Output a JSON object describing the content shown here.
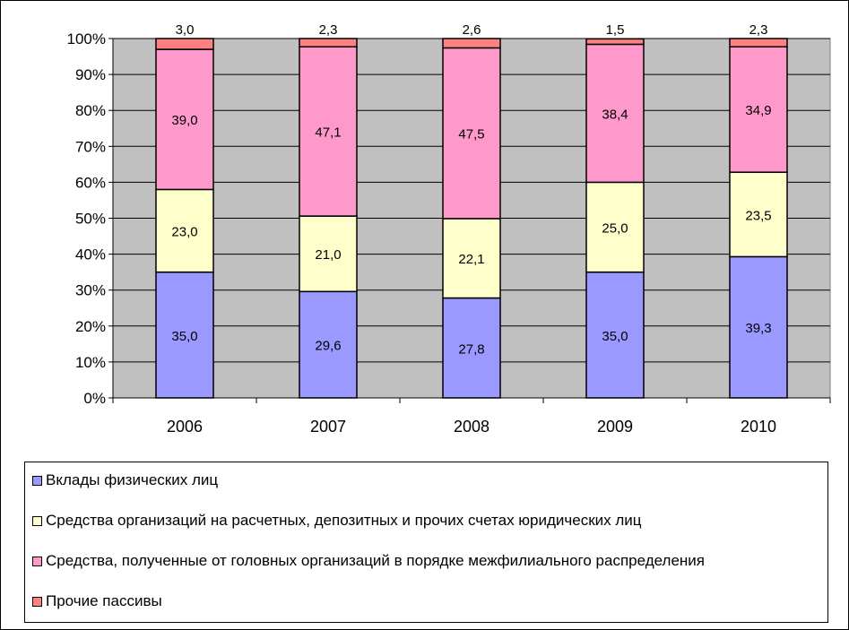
{
  "chart_data": {
    "type": "bar",
    "stacked": true,
    "percent": true,
    "categories": [
      "2006",
      "2007",
      "2008",
      "2009",
      "2010"
    ],
    "y_ticks": [
      "0%",
      "10%",
      "20%",
      "30%",
      "40%",
      "50%",
      "60%",
      "70%",
      "80%",
      "90%",
      "100%"
    ],
    "ylim": [
      0,
      100
    ],
    "grid": true,
    "legend_position": "bottom",
    "series": [
      {
        "name": "Вклады физических лиц",
        "color": "#9999ff",
        "values": [
          35.0,
          29.6,
          27.8,
          35.0,
          39.3
        ],
        "labels": [
          "35,0",
          "29,6",
          "27,8",
          "35,0",
          "39,3"
        ]
      },
      {
        "name": "Средства организаций на расчетных, депозитных и прочих счетах юридических лиц",
        "color": "#ffffcc",
        "values": [
          23.0,
          21.0,
          22.1,
          25.0,
          23.5
        ],
        "labels": [
          "23,0",
          "21,0",
          "22,1",
          "25,0",
          "23,5"
        ]
      },
      {
        "name": "Средства, полученные от головных организаций в порядке межфилиального распределения",
        "color": "#ff99cc",
        "values": [
          39.0,
          47.1,
          47.5,
          38.4,
          34.9
        ],
        "labels": [
          "39,0",
          "47,1",
          "47,5",
          "38,4",
          "34,9"
        ]
      },
      {
        "name": "Прочие пассивы",
        "color": "#ff8080",
        "values": [
          3.0,
          2.3,
          2.6,
          1.5,
          2.3
        ],
        "labels": [
          "3,0",
          "2,3",
          "2,6",
          "1,5",
          "2,3"
        ]
      }
    ],
    "plot_background": "#c0c0c0"
  }
}
